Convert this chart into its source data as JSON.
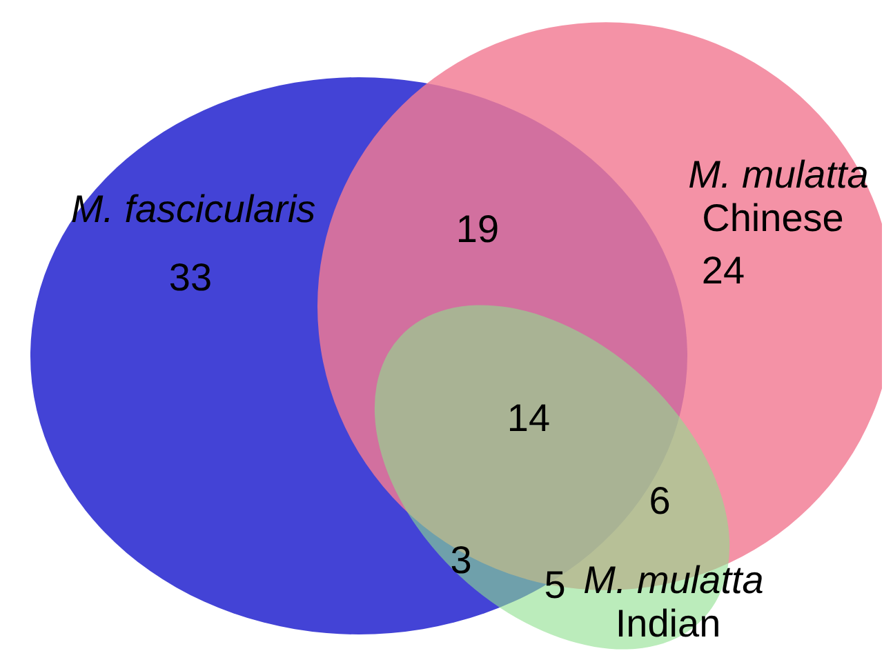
{
  "chart_data": {
    "type": "other",
    "categories": [
      null,
      null,
      null,
      null,
      null,
      null,
      null
    ],
    "values": [
      33,
      19,
      24,
      14,
      6,
      3,
      5
    ],
    "data_labels": true,
    "annotations": [
      "M. fascicularis",
      "M. mulatta Chinese",
      "M. mulatta Indian"
    ]
  }
}
